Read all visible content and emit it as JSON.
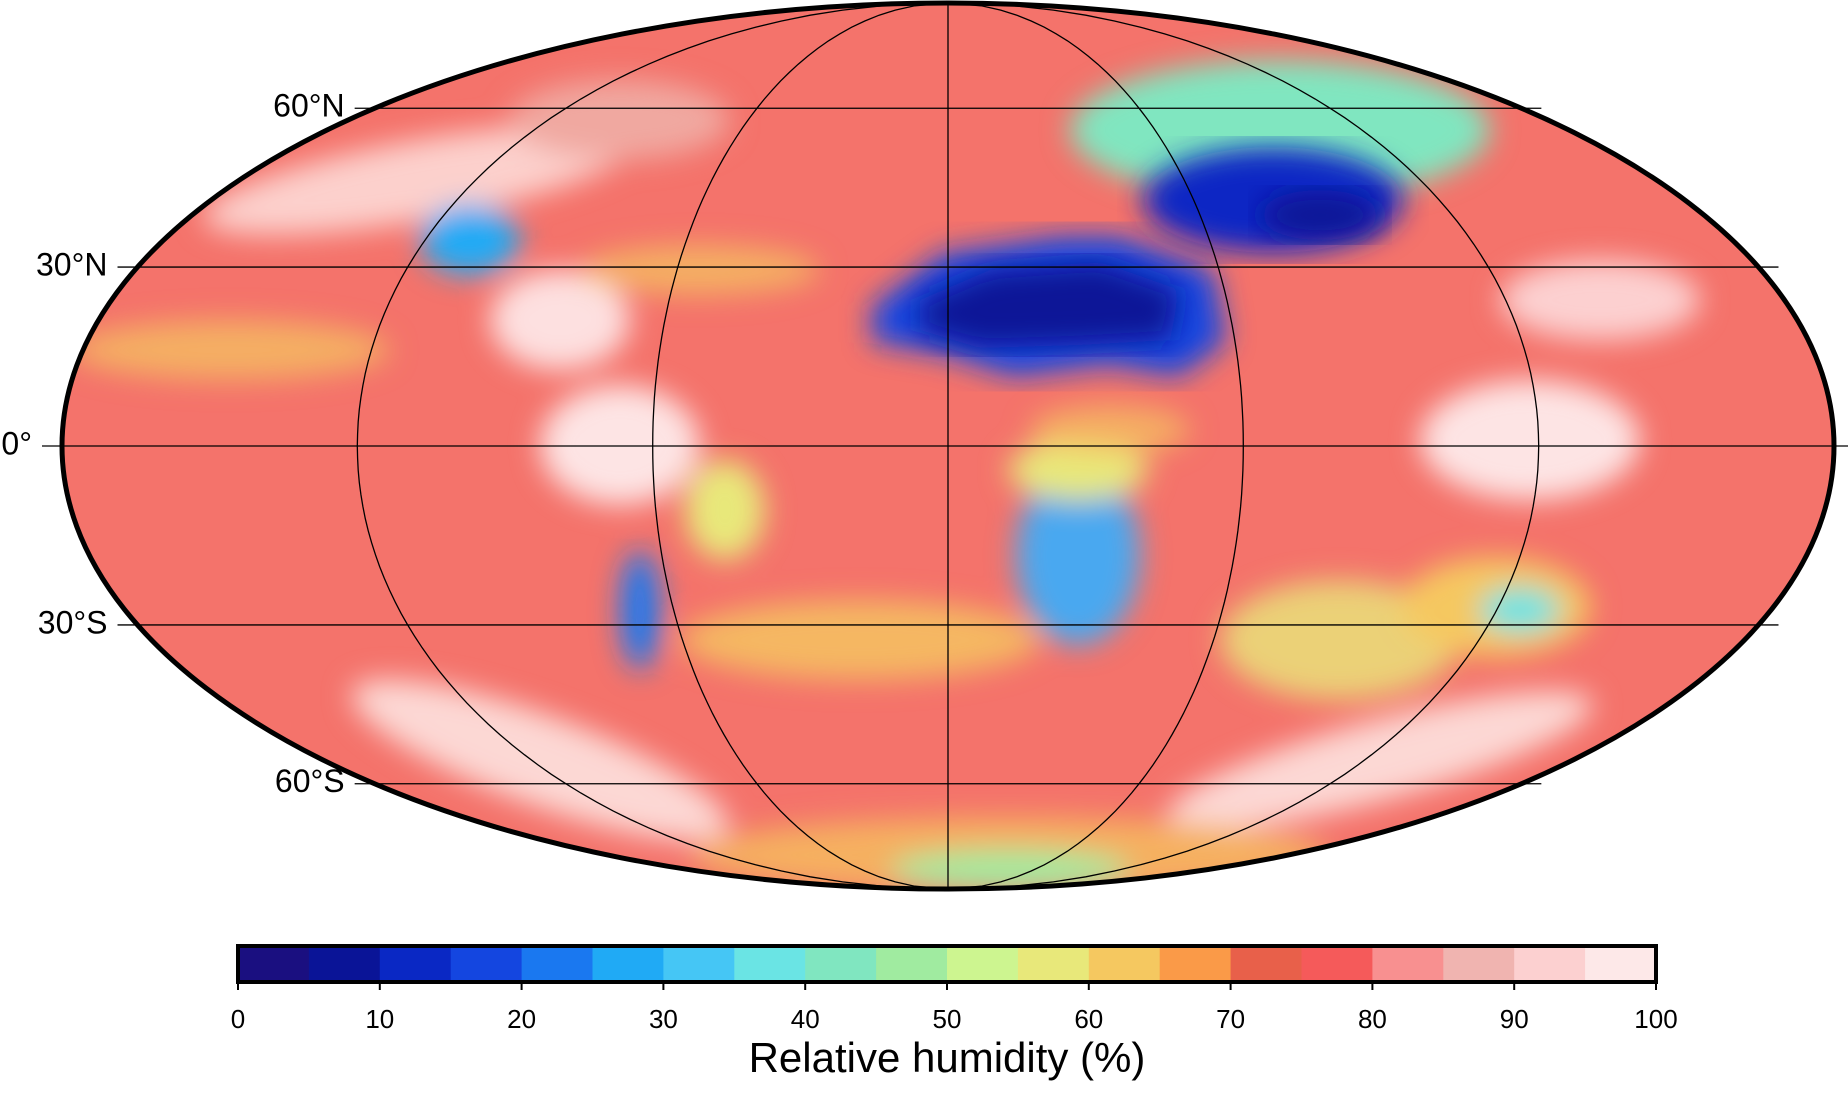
{
  "map": {
    "projection": "mollweide",
    "parallels": [
      {
        "value": 60,
        "label": "60°N"
      },
      {
        "value": 30,
        "label": "30°N"
      },
      {
        "value": 0,
        "label": "0°"
      },
      {
        "value": -30,
        "label": "30°S"
      },
      {
        "value": -60,
        "label": "60°S"
      }
    ],
    "meridians": [
      -120,
      -60,
      0,
      60,
      120
    ]
  },
  "colorbar": {
    "label": "Relative humidity (%)",
    "range": [
      0,
      100
    ],
    "ticks": [
      0,
      10,
      20,
      30,
      40,
      50,
      60,
      70,
      80,
      90,
      100
    ],
    "bins": [
      0,
      5,
      10,
      15,
      20,
      25,
      30,
      35,
      40,
      45,
      50,
      55,
      60,
      65,
      70,
      75,
      80,
      85,
      90,
      95,
      100
    ],
    "colors": [
      "#1a0f80",
      "#0a1497",
      "#0a28c4",
      "#1446e0",
      "#1a78f0",
      "#20aaf5",
      "#45c6f5",
      "#6ae4e4",
      "#80e6c0",
      "#a0eba0",
      "#cdf590",
      "#e8e87a",
      "#f5c860",
      "#fa9a48",
      "#e8604a",
      "#f55a5a",
      "#f89090",
      "#f0b4b0",
      "#fcd0d0",
      "#fde8e8"
    ]
  }
}
